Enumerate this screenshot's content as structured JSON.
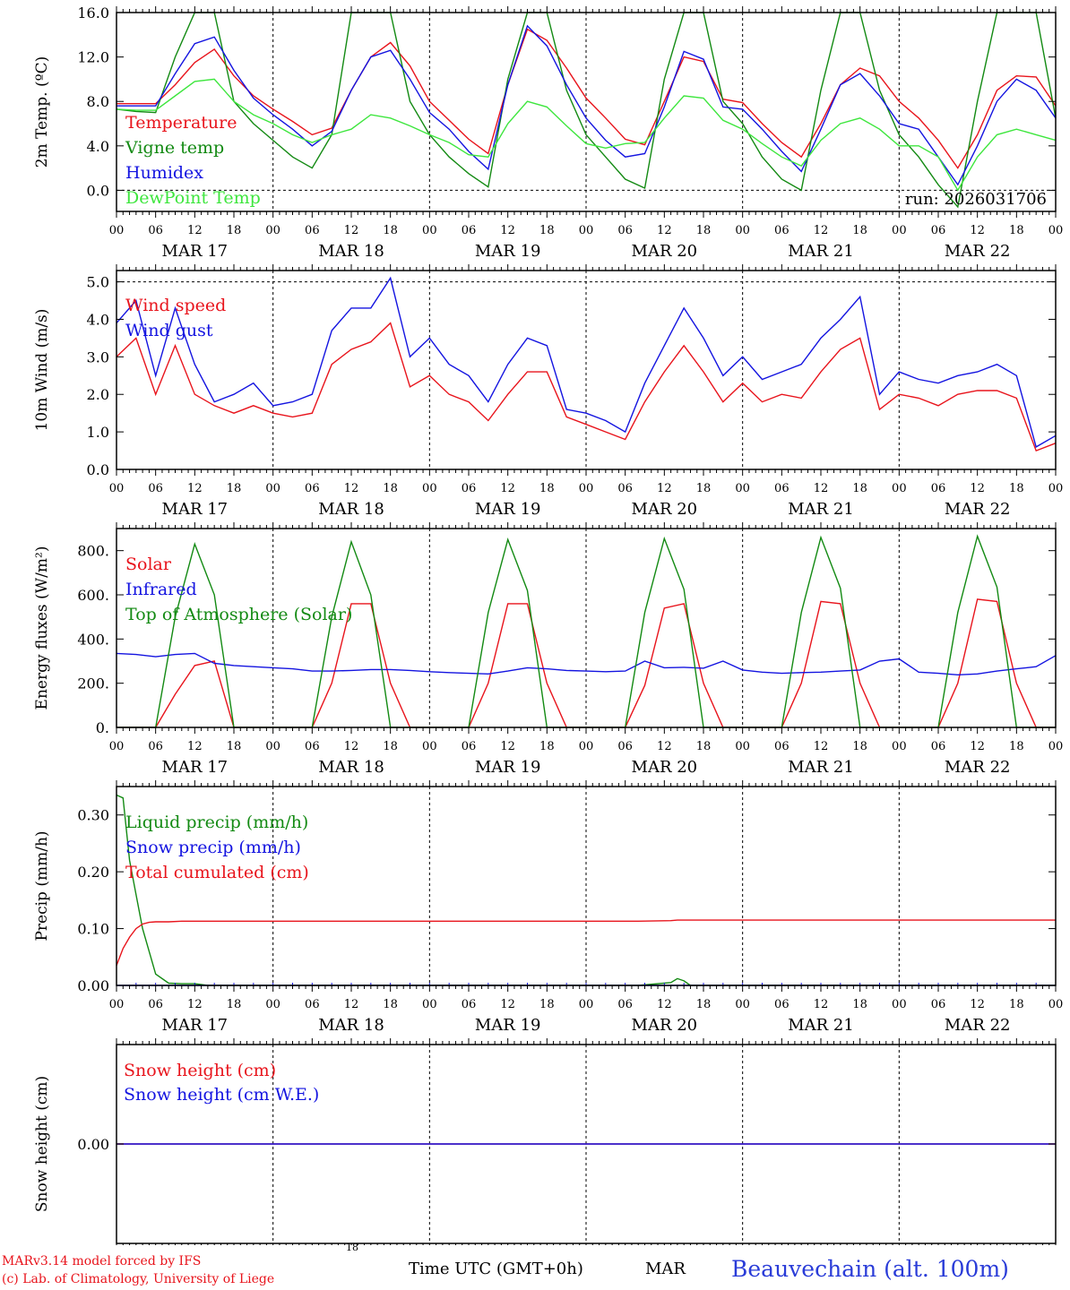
{
  "colors": {
    "red": "#e8141c",
    "green": "#138a13",
    "blue": "#1414e0",
    "lightgreen": "#3ee63e",
    "axis": "#000000",
    "bluetitle": "#2a3cd8"
  },
  "days": [
    "MAR 17",
    "MAR 18",
    "MAR 19",
    "MAR 20",
    "MAR 21",
    "MAR 22"
  ],
  "hour_labels": [
    "00",
    "06",
    "12",
    "18"
  ],
  "footer": {
    "model_line": "MARv3.14 model forced by IFS",
    "lab_line": "(c) Lab. of Climatology, University of Liege",
    "time_label": "Time UTC (GMT+0h)",
    "small_18": "18",
    "month": "MAR",
    "station": "Beauvechain (alt. 100m)"
  },
  "chart_data": [
    {
      "type": "line",
      "ylabel": "2m Temp. (ºC)",
      "ylim": [
        -1.9,
        16.0
      ],
      "yticks": [
        "0.0",
        "4.0",
        "8.0",
        "12.0",
        "16.0"
      ],
      "ytick_values": [
        0,
        4,
        8,
        12,
        16
      ],
      "dashed_y": [
        0
      ],
      "annotation": "run: 2026031706",
      "x_hours_from_start": [
        0,
        3,
        6,
        9,
        12,
        15,
        18,
        21,
        24,
        27,
        30,
        33,
        36,
        39,
        42,
        45,
        48,
        51,
        54,
        57,
        60,
        63,
        66,
        69,
        72,
        75,
        78,
        81,
        84,
        87,
        90,
        93,
        96,
        99,
        102,
        105,
        108,
        111,
        114,
        117,
        120,
        123,
        126,
        129,
        132,
        135,
        138,
        141,
        144
      ],
      "series": [
        {
          "name": "Temperature",
          "color": "red",
          "values": [
            7.8,
            7.8,
            7.8,
            9.5,
            11.5,
            12.7,
            10.3,
            8.5,
            7.3,
            6.2,
            5.0,
            5.6,
            9.0,
            12.0,
            13.3,
            11.2,
            8.0,
            6.3,
            4.6,
            3.3,
            9.5,
            14.5,
            13.5,
            11.0,
            8.3,
            6.5,
            4.6,
            4.1,
            8.0,
            12.0,
            11.6,
            8.2,
            7.9,
            6.0,
            4.3,
            3.0,
            6.0,
            9.5,
            11.0,
            10.3,
            8.0,
            6.5,
            4.5,
            2.0,
            5.0,
            9.0,
            10.3,
            10.2,
            7.6
          ]
        },
        {
          "name": "Vigne temp",
          "color": "green",
          "values": [
            7.3,
            7.1,
            7.0,
            12.0,
            16.0,
            16.0,
            8.0,
            6.0,
            4.5,
            3.0,
            2.0,
            5.0,
            16.0,
            16.0,
            16.0,
            8.0,
            5.0,
            3.0,
            1.5,
            0.3,
            10.0,
            16.0,
            16.0,
            9.0,
            5.0,
            3.0,
            1.0,
            0.2,
            10.0,
            16.0,
            16.0,
            8.0,
            6.0,
            3.0,
            1.0,
            0.0,
            9.0,
            16.0,
            16.0,
            9.0,
            5.0,
            3.0,
            0.5,
            -1.5,
            8.0,
            16.0,
            16.0,
            16.0,
            6.5
          ]
        },
        {
          "name": "Humidex",
          "color": "blue",
          "values": [
            7.6,
            7.6,
            7.6,
            10.5,
            13.2,
            13.8,
            10.8,
            8.3,
            6.8,
            5.5,
            4.0,
            5.3,
            9.0,
            12.0,
            12.6,
            10.0,
            7.0,
            5.5,
            3.5,
            1.9,
            9.5,
            14.8,
            13.0,
            9.5,
            6.5,
            4.5,
            3.0,
            3.3,
            7.5,
            12.5,
            11.8,
            7.5,
            7.3,
            5.5,
            3.5,
            1.7,
            5.5,
            9.5,
            10.5,
            8.5,
            6.0,
            5.5,
            3.0,
            0.5,
            4.0,
            8.0,
            10.0,
            9.0,
            6.5
          ]
        },
        {
          "name": "DewPoint Temp",
          "color": "lightgreen",
          "values": [
            7.3,
            7.2,
            7.2,
            8.5,
            9.8,
            10.0,
            8.0,
            6.8,
            6.0,
            5.0,
            4.3,
            5.0,
            5.5,
            6.8,
            6.5,
            5.8,
            5.0,
            4.3,
            3.2,
            3.0,
            6.0,
            8.0,
            7.5,
            5.8,
            4.2,
            3.8,
            4.2,
            4.3,
            6.5,
            8.5,
            8.3,
            6.3,
            5.5,
            4.2,
            3.0,
            2.2,
            4.5,
            6.0,
            6.5,
            5.5,
            4.0,
            4.0,
            3.0,
            0.0,
            3.0,
            5.0,
            5.5,
            5.0,
            4.5
          ]
        }
      ]
    },
    {
      "type": "line",
      "ylabel": "10m Wind (m/s)",
      "ylim": [
        0.0,
        5.3
      ],
      "yticks": [
        "0.0",
        "1.0",
        "2.0",
        "3.0",
        "4.0",
        "5.0"
      ],
      "ytick_values": [
        0,
        1,
        2,
        3,
        4,
        5
      ],
      "dashed_y": [
        5
      ],
      "x_hours_from_start": [
        0,
        3,
        6,
        9,
        12,
        15,
        18,
        21,
        24,
        27,
        30,
        33,
        36,
        39,
        42,
        45,
        48,
        51,
        54,
        57,
        60,
        63,
        66,
        69,
        72,
        75,
        78,
        81,
        84,
        87,
        90,
        93,
        96,
        99,
        102,
        105,
        108,
        111,
        114,
        117,
        120,
        123,
        126,
        129,
        132,
        135,
        138,
        141,
        144
      ],
      "series": [
        {
          "name": "Wind speed",
          "color": "red",
          "values": [
            3.0,
            3.5,
            2.0,
            3.3,
            2.0,
            1.7,
            1.5,
            1.7,
            1.5,
            1.4,
            1.5,
            2.8,
            3.2,
            3.4,
            3.9,
            2.2,
            2.5,
            2.0,
            1.8,
            1.3,
            2.0,
            2.6,
            2.6,
            1.4,
            1.2,
            1.0,
            0.8,
            1.8,
            2.6,
            3.3,
            2.6,
            1.8,
            2.3,
            1.8,
            2.0,
            1.9,
            2.6,
            3.2,
            3.5,
            1.6,
            2.0,
            1.9,
            1.7,
            2.0,
            2.1,
            2.1,
            1.9,
            0.5,
            0.7
          ]
        },
        {
          "name": "Wind gust",
          "color": "blue",
          "values": [
            3.9,
            4.5,
            2.5,
            4.3,
            2.8,
            1.8,
            2.0,
            2.3,
            1.7,
            1.8,
            2.0,
            3.7,
            4.3,
            4.3,
            5.1,
            3.0,
            3.5,
            2.8,
            2.5,
            1.8,
            2.8,
            3.5,
            3.3,
            1.6,
            1.5,
            1.3,
            1.0,
            2.3,
            3.3,
            4.3,
            3.5,
            2.5,
            3.0,
            2.4,
            2.6,
            2.8,
            3.5,
            4.0,
            4.6,
            2.0,
            2.6,
            2.4,
            2.3,
            2.5,
            2.6,
            2.8,
            2.5,
            0.6,
            0.9
          ]
        }
      ]
    },
    {
      "type": "line",
      "ylabel": "Energy fluxes (W/m²)",
      "ylim": [
        0,
        900
      ],
      "yticks": [
        "0.",
        "200.",
        "400.",
        "600.",
        "800."
      ],
      "ytick_values": [
        0,
        200,
        400,
        600,
        800
      ],
      "dashed_y": [],
      "x_hours_from_start": [
        0,
        3,
        6,
        9,
        12,
        15,
        18,
        21,
        24,
        27,
        30,
        33,
        36,
        39,
        42,
        45,
        48,
        51,
        54,
        57,
        60,
        63,
        66,
        69,
        72,
        75,
        78,
        81,
        84,
        87,
        90,
        93,
        96,
        99,
        102,
        105,
        108,
        111,
        114,
        117,
        120,
        123,
        126,
        129,
        132,
        135,
        138,
        141,
        144
      ],
      "series": [
        {
          "name": "Solar",
          "color": "red",
          "values": [
            0,
            0,
            0,
            150,
            280,
            300,
            0,
            0,
            0,
            0,
            0,
            200,
            560,
            560,
            200,
            0,
            0,
            0,
            0,
            200,
            560,
            560,
            200,
            0,
            0,
            0,
            0,
            190,
            540,
            560,
            200,
            0,
            0,
            0,
            0,
            200,
            570,
            560,
            200,
            0,
            0,
            0,
            0,
            200,
            580,
            570,
            200,
            0,
            0
          ]
        },
        {
          "name": "Infrared",
          "color": "blue",
          "values": [
            335,
            330,
            320,
            330,
            335,
            290,
            280,
            275,
            270,
            265,
            255,
            255,
            258,
            262,
            262,
            258,
            252,
            248,
            245,
            242,
            255,
            270,
            265,
            258,
            255,
            252,
            255,
            300,
            270,
            272,
            268,
            300,
            260,
            250,
            245,
            248,
            250,
            255,
            260,
            300,
            310,
            250,
            245,
            238,
            242,
            255,
            265,
            275,
            325
          ]
        },
        {
          "name": "Top of Atmosphere (Solar)",
          "color": "green",
          "values": [
            0,
            0,
            0,
            500,
            830,
            600,
            0,
            0,
            0,
            0,
            0,
            500,
            840,
            600,
            0,
            0,
            0,
            0,
            0,
            520,
            850,
            620,
            0,
            0,
            0,
            0,
            0,
            520,
            855,
            625,
            0,
            0,
            0,
            0,
            0,
            520,
            860,
            630,
            0,
            0,
            0,
            0,
            0,
            520,
            865,
            635,
            0,
            0,
            0
          ]
        }
      ]
    },
    {
      "type": "line",
      "ylabel": "Precip (mm/h)",
      "ylim": [
        0.0,
        0.35
      ],
      "yticks": [
        "0.00",
        "0.10",
        "0.20",
        "0.30"
      ],
      "ytick_values": [
        0,
        0.1,
        0.2,
        0.3
      ],
      "dashed_y": [],
      "x_hours_from_start": [
        0,
        1,
        2,
        3,
        4,
        5,
        6,
        8,
        10,
        12,
        14,
        20,
        30,
        60,
        72,
        80,
        85,
        86,
        87,
        88,
        90,
        100,
        120,
        144
      ],
      "series": [
        {
          "name": "Liquid precip (mm/h)",
          "color": "green",
          "values": [
            0.335,
            0.33,
            0.22,
            0.16,
            0.1,
            0.06,
            0.02,
            0.004,
            0.003,
            0.003,
            0.0,
            0.0,
            0.0,
            0.0,
            0.0,
            0.0,
            0.005,
            0.012,
            0.008,
            0.0,
            0.0,
            0.0,
            0.0,
            0.0
          ]
        },
        {
          "name": "Snow precip (mm/h)",
          "color": "blue",
          "values": [
            0,
            0,
            0,
            0,
            0,
            0,
            0,
            0,
            0,
            0,
            0,
            0,
            0,
            0,
            0,
            0,
            0,
            0,
            0,
            0,
            0,
            0,
            0,
            0
          ]
        },
        {
          "name": "Total cumulated (cm)",
          "color": "red",
          "values": [
            0.035,
            0.065,
            0.085,
            0.1,
            0.108,
            0.111,
            0.112,
            0.112,
            0.113,
            0.113,
            0.113,
            0.113,
            0.113,
            0.113,
            0.113,
            0.113,
            0.114,
            0.115,
            0.115,
            0.115,
            0.115,
            0.115,
            0.115,
            0.115
          ]
        }
      ]
    },
    {
      "type": "line",
      "ylabel": "Snow height (cm)",
      "ylim": [
        -0.01,
        0.01
      ],
      "yticks": [
        "0.00"
      ],
      "ytick_values": [
        0
      ],
      "dashed_y": [],
      "x_hours_from_start": [
        0,
        144
      ],
      "series": [
        {
          "name": "Snow height (cm)",
          "color": "red",
          "values": [
            0,
            0
          ]
        },
        {
          "name": "Snow height (cm W.E.)",
          "color": "blue",
          "values": [
            0,
            0
          ]
        }
      ]
    }
  ]
}
